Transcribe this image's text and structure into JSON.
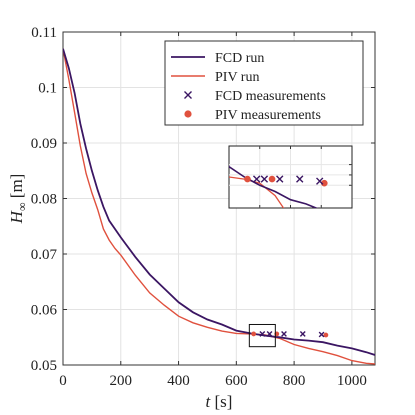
{
  "chart_data": {
    "type": "line",
    "xlabel_var": "t",
    "xlabel_unit": "[s]",
    "ylabel_var": "H",
    "ylabel_sub": "∞",
    "ylabel_unit": "[m]",
    "xlim": [
      0,
      1080
    ],
    "ylim": [
      0.05,
      0.11
    ],
    "x_ticks": [
      0,
      200,
      400,
      600,
      800,
      1000
    ],
    "x_tick_labels": [
      "0",
      "200",
      "400",
      "600",
      "800",
      "1000"
    ],
    "y_ticks": [
      0.05,
      0.06,
      0.07,
      0.08,
      0.09,
      0.1,
      0.11
    ],
    "y_tick_labels": [
      "0.05",
      "0.06",
      "0.07",
      "0.08",
      "0.09",
      "0.1",
      "0.11"
    ],
    "grid": true,
    "legend_position": "top-right",
    "colors": {
      "fcd": "#3b1663",
      "piv": "#e0513e"
    },
    "series": [
      {
        "name": "FCD run",
        "x": [
          0,
          20,
          40,
          60,
          80,
          100,
          120,
          140,
          160,
          180,
          200,
          250,
          300,
          350,
          400,
          450,
          500,
          550,
          600,
          650,
          700,
          750,
          800,
          850,
          900,
          950,
          1000,
          1050,
          1080
        ],
        "y": [
          0.107,
          0.1035,
          0.099,
          0.0935,
          0.089,
          0.085,
          0.0815,
          0.0785,
          0.076,
          0.0745,
          0.073,
          0.0695,
          0.0663,
          0.0638,
          0.0613,
          0.0595,
          0.0582,
          0.0573,
          0.0562,
          0.0557,
          0.0553,
          0.055,
          0.0546,
          0.0544,
          0.0541,
          0.0535,
          0.053,
          0.0523,
          0.0518
        ]
      },
      {
        "name": "PIV run",
        "x": [
          0,
          20,
          40,
          60,
          80,
          100,
          120,
          140,
          160,
          180,
          200,
          250,
          300,
          350,
          400,
          450,
          500,
          550,
          600,
          650,
          700,
          750,
          800,
          850,
          900,
          950,
          1000,
          1050,
          1080
        ],
        "y": [
          0.107,
          0.1015,
          0.0955,
          0.0895,
          0.0845,
          0.081,
          0.078,
          0.0745,
          0.0725,
          0.071,
          0.0698,
          0.0662,
          0.063,
          0.0608,
          0.0588,
          0.0576,
          0.0568,
          0.0561,
          0.0557,
          0.0556,
          0.0554,
          0.0548,
          0.0537,
          0.053,
          0.0524,
          0.0517,
          0.0508,
          0.0503,
          0.0502
        ]
      },
      {
        "name": "FCD measurements",
        "marker": "x",
        "x": [
          690,
          715,
          765,
          830,
          895
        ],
        "y": [
          0.0556,
          0.0556,
          0.0556,
          0.0556,
          0.0555
        ]
      },
      {
        "name": "PIV measurements",
        "marker": "circle",
        "x": [
          660,
          740,
          910
        ],
        "y": [
          0.0556,
          0.0556,
          0.0554
        ]
      }
    ],
    "zoom_box": {
      "x": [
        645,
        735
      ],
      "y": [
        0.0533,
        0.0573
      ]
    }
  }
}
